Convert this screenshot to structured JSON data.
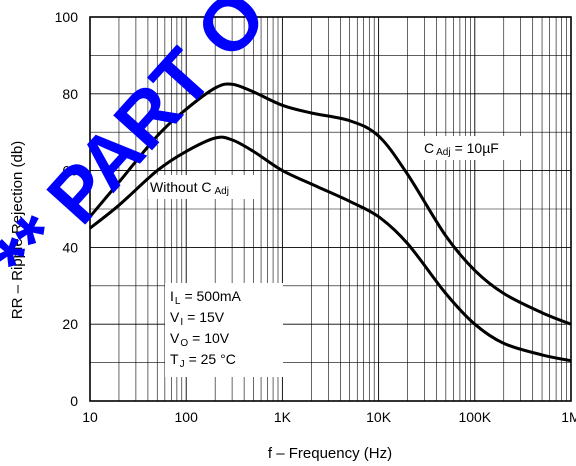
{
  "chart_data": {
    "type": "line",
    "title": "",
    "xlabel": "f – Frequency (Hz)",
    "ylabel": "RR – Ripple Rejection (db)",
    "x_scale": "log",
    "xlim": [
      10,
      1000000
    ],
    "ylim": [
      0,
      100
    ],
    "grid": true,
    "x_ticks": [
      10,
      100,
      1000,
      10000,
      100000,
      1000000
    ],
    "x_tick_labels": [
      "10",
      "100",
      "1K",
      "10K",
      "100K",
      "1M"
    ],
    "y_ticks": [
      0,
      20,
      40,
      60,
      80,
      100
    ],
    "y_tick_labels": [
      "0",
      "20",
      "40",
      "60",
      "80",
      "100"
    ],
    "series": [
      {
        "name": "C Adj = 10µF",
        "x": [
          10,
          20,
          50,
          100,
          200,
          300,
          500,
          1000,
          2000,
          5000,
          10000,
          20000,
          50000,
          100000,
          200000,
          500000,
          1000000
        ],
        "y": [
          48,
          57,
          69,
          76,
          81.5,
          82.5,
          80.5,
          77,
          75,
          73,
          69,
          59,
          43,
          34,
          28,
          23,
          20
        ]
      },
      {
        "name": "Without C Adj",
        "x": [
          10,
          20,
          50,
          100,
          200,
          300,
          500,
          1000,
          2000,
          5000,
          10000,
          20000,
          50000,
          100000,
          200000,
          500000,
          1000000
        ],
        "y": [
          45,
          51,
          60,
          65,
          68.5,
          68,
          65,
          60,
          56.5,
          52,
          48,
          41,
          28,
          20,
          15,
          12,
          10.5
        ]
      }
    ],
    "labels": {
      "cadj_main": "C",
      "cadj_sub": "Adj",
      "cadj_value": "= 10µF",
      "without_main": "Without C",
      "without_sub": "Adj"
    },
    "conditions": [
      {
        "main": "I",
        "sub": "L",
        "rest": "= 500mA"
      },
      {
        "main": "V",
        "sub": "I",
        "rest": "= 15V"
      },
      {
        "main": "V",
        "sub": "O",
        "rest": "= 10V"
      },
      {
        "main": "T",
        "sub": "J",
        "rest": "= 25 °C"
      }
    ]
  },
  "watermark": {
    "text": "** PART O",
    "color": "#0000ff"
  }
}
